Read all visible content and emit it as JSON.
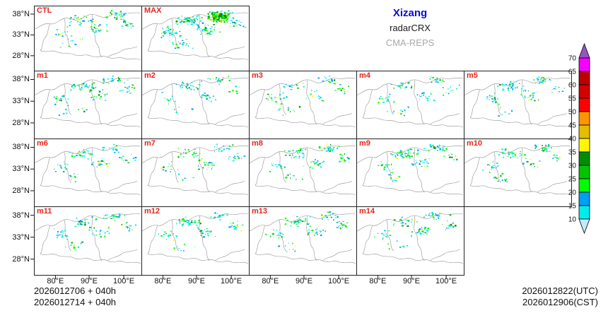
{
  "header": {
    "region": "Xizang",
    "product": "radarCRX",
    "system": "CMA-REPS",
    "region_color": "#0a0ae0",
    "product_color": "#1a1a1a",
    "system_color": "#a8a8a8"
  },
  "panels": [
    {
      "label": "CTL"
    },
    {
      "label": "MAX"
    },
    {
      "label": "m1"
    },
    {
      "label": "m2"
    },
    {
      "label": "m3"
    },
    {
      "label": "m4"
    },
    {
      "label": "m5"
    },
    {
      "label": "m6"
    },
    {
      "label": "m7"
    },
    {
      "label": "m8"
    },
    {
      "label": "m9"
    },
    {
      "label": "m10"
    },
    {
      "label": "m11"
    },
    {
      "label": "m12"
    },
    {
      "label": "m13"
    },
    {
      "label": "m14"
    }
  ],
  "axes": {
    "y_ticks": [
      "38°N",
      "33°N",
      "28°N"
    ],
    "x_ticks": [
      "80°E",
      "90°E",
      "100°E"
    ]
  },
  "colorbar": {
    "ticks": [
      "70",
      "65",
      "60",
      "55",
      "50",
      "45",
      "40",
      "35",
      "30",
      "25",
      "20",
      "15",
      "10"
    ],
    "segment_colors_top_to_bottom": [
      "#9854c6",
      "#f800fd",
      "#bc0000",
      "#d40000",
      "#fd0000",
      "#fd9500",
      "#e5bc00",
      "#fdf802",
      "#008e00",
      "#01c501",
      "#02fd02",
      "#019ff4",
      "#00ecec",
      "#c2eafa"
    ]
  },
  "footer": {
    "left_line1": "2026012706 + 040h",
    "left_line2": "2026012714 + 040h",
    "right_line1": "2026012822(UTC)",
    "right_line2": "2026012906(CST)"
  },
  "colors": {
    "panel_label": "#e62319",
    "map_line": "#909090",
    "echo": {
      "cyan": "#00ecec",
      "blue": "#019ff4",
      "green_light": "#02fd02",
      "green": "#01c501",
      "green_dark": "#008e00",
      "yellow": "#fdf802",
      "gold": "#e5bc00"
    }
  },
  "chart_data": {
    "type": "heatmap",
    "subtype": "ensemble-radar-reflectivity-panel-maps",
    "title": "Xizang radarCRX CMA-REPS",
    "panels": [
      "CTL",
      "MAX",
      "m1",
      "m2",
      "m3",
      "m4",
      "m5",
      "m6",
      "m7",
      "m8",
      "m9",
      "m10",
      "m11",
      "m12",
      "m13",
      "m14"
    ],
    "x_axis": {
      "tick_labels": [
        "80°E",
        "90°E",
        "100°E"
      ]
    },
    "y_axis": {
      "tick_labels": [
        "38°N",
        "33°N",
        "28°N"
      ]
    },
    "colorbar_levels": [
      10,
      15,
      20,
      25,
      30,
      35,
      40,
      45,
      50,
      55,
      60,
      65,
      70
    ],
    "annotations": [
      "Xizang",
      "radarCRX",
      "CMA-REPS",
      "2026012706 + 040h",
      "2026012714 + 040h",
      "2026012822(UTC)",
      "2026012906(CST)"
    ],
    "legend_position": "right"
  }
}
